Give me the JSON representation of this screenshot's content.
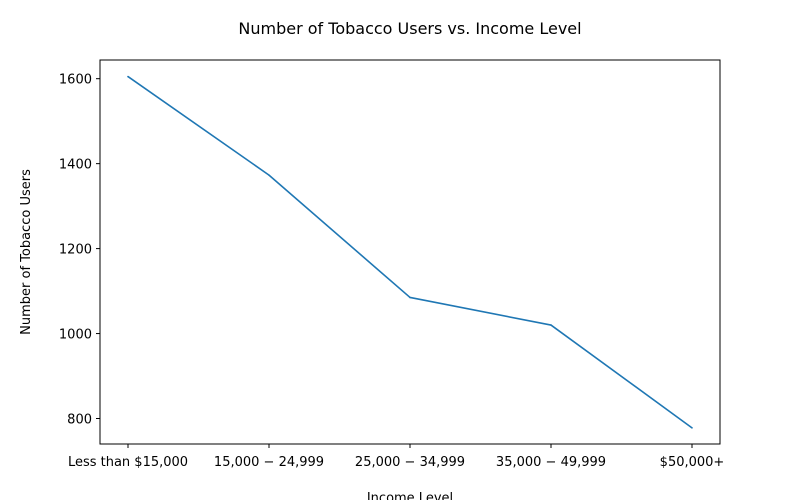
{
  "chart_data": {
    "type": "line",
    "title": "Number of Tobacco Users vs. Income Level",
    "xlabel": "Income Level",
    "ylabel": "Number of Tobacco Users",
    "categories": [
      "Less than $15,000",
      "$15,000-$24,999",
      "$25,000-$34,999",
      "$35,000-$49,999",
      "$50,000+"
    ],
    "tick_labels": [
      "Less than $15,000",
      "15,000 − 24,999",
      "25,000 − 34,999",
      "35,000 − 49,999",
      "$50,000+"
    ],
    "series": [
      {
        "values": [
          1605,
          1373,
          1085,
          1020,
          778
        ]
      }
    ],
    "yticks": [
      800,
      1000,
      1200,
      1400,
      1600
    ],
    "ylim": [
      740,
      1644
    ],
    "grid": false,
    "legend": "none",
    "colors": {
      "line": "#1f77b4",
      "axes": "#000000",
      "background": "#ffffff"
    }
  }
}
